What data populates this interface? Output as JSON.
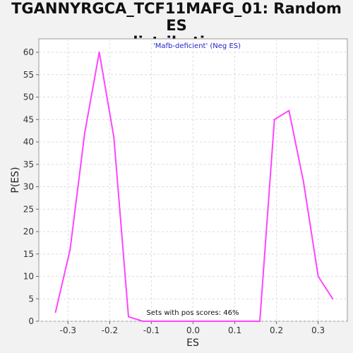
{
  "chart_data": {
    "type": "line",
    "title_line1": "TGANNYRGCA_TCF11MAFG_01: Random ES",
    "title_line2": "distribution",
    "xlabel": "ES",
    "ylabel": "P(ES)",
    "xlim": [
      -0.37,
      0.37
    ],
    "ylim": [
      0,
      63
    ],
    "x_ticks": [
      -0.3,
      -0.2,
      -0.1,
      0.0,
      0.1,
      0.2,
      0.3
    ],
    "x_tick_labels": [
      "-0.3",
      "-0.2",
      "-0.1",
      "0.0",
      "0.1",
      "0.2",
      "0.3"
    ],
    "y_ticks": [
      0,
      5,
      10,
      15,
      20,
      25,
      30,
      35,
      40,
      45,
      50,
      55,
      60
    ],
    "y_tick_labels": [
      "0",
      "5",
      "10",
      "15",
      "20",
      "25",
      "30",
      "35",
      "40",
      "45",
      "50",
      "55",
      "60"
    ],
    "grid": true,
    "series": [
      {
        "color": "#ff44ff",
        "x": [
          -0.33,
          -0.295,
          -0.26,
          -0.225,
          -0.19,
          -0.155,
          -0.12,
          -0.085,
          -0.05,
          -0.015,
          0.02,
          0.055,
          0.09,
          0.125,
          0.16,
          0.195,
          0.23,
          0.265,
          0.3,
          0.335
        ],
        "y": [
          2,
          16,
          42,
          60,
          41,
          1,
          0,
          0,
          0,
          0,
          0,
          0,
          0,
          0,
          0,
          45,
          47,
          31,
          10,
          5
        ]
      }
    ],
    "annotations": [
      {
        "text": "'Mafb-deficient' (Neg ES)",
        "color": "#2222cc"
      },
      {
        "text": "Sets with pos scores: 46%",
        "color": "#111111"
      }
    ]
  }
}
